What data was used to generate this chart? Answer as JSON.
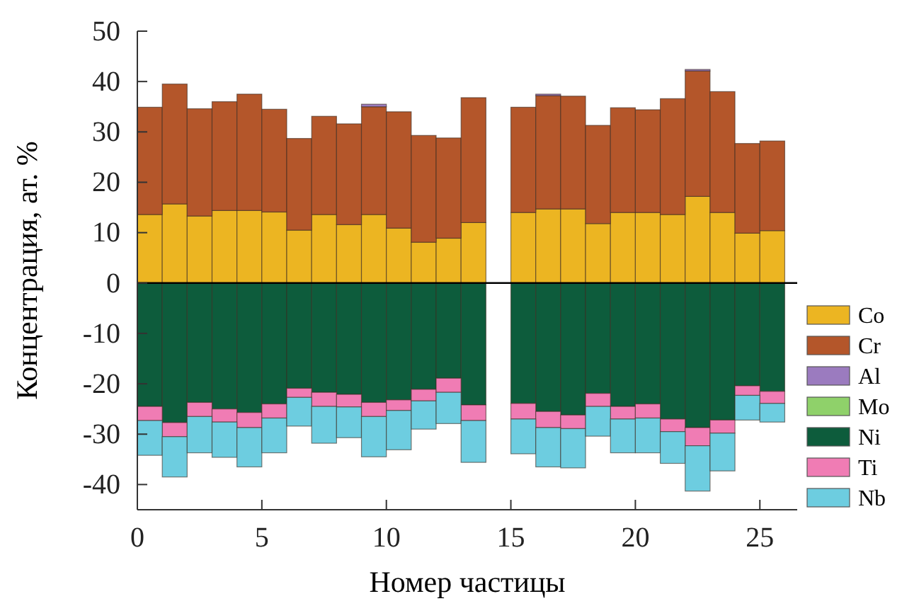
{
  "chart_data": {
    "type": "bar",
    "stacked": true,
    "xlabel": "Номер частицы",
    "ylabel": "Концентрация, ат. %",
    "x": [
      0.5,
      1.5,
      2.5,
      3.5,
      4.5,
      5.5,
      6.5,
      7.5,
      8.5,
      9.5,
      10.5,
      11.5,
      12.5,
      13.5,
      15.5,
      16.5,
      17.5,
      18.5,
      19.5,
      20.5,
      21.5,
      22.5,
      23.5,
      24.5,
      25.5
    ],
    "xlim": [
      0,
      26.5
    ],
    "xticks": [
      0,
      5,
      10,
      15,
      20,
      25
    ],
    "ylim": [
      -45,
      50
    ],
    "yticks": [
      -40,
      -30,
      -20,
      -10,
      0,
      10,
      20,
      30,
      40,
      50
    ],
    "grid": false,
    "legend": "right",
    "ref_lines": [
      {
        "axis": "y",
        "value": 0,
        "color": "#000000"
      }
    ],
    "series": [
      {
        "name": "Co",
        "color": "#ecb522",
        "values": [
          13.6,
          15.7,
          13.3,
          14.4,
          14.4,
          14.1,
          10.5,
          13.6,
          11.6,
          13.6,
          10.9,
          8.1,
          8.9,
          12.0,
          14.0,
          14.7,
          14.7,
          11.8,
          14.0,
          14.0,
          13.6,
          17.2,
          14.0,
          9.9,
          10.4
        ]
      },
      {
        "name": "Cr",
        "color": "#b4562a",
        "values": [
          21.3,
          23.8,
          21.3,
          21.6,
          23.1,
          20.4,
          18.2,
          19.5,
          20.0,
          21.4,
          23.1,
          21.2,
          19.9,
          24.8,
          20.9,
          22.5,
          22.4,
          19.5,
          20.8,
          20.4,
          23.0,
          24.9,
          24.0,
          17.8,
          17.8
        ]
      },
      {
        "name": "Al",
        "color": "#9b7bbf",
        "values": [
          0,
          0,
          0,
          0,
          0,
          0,
          0,
          0,
          0,
          0.5,
          0,
          0,
          0,
          0,
          0,
          0.3,
          0,
          0,
          0,
          0,
          0,
          0.3,
          0,
          0,
          0
        ]
      },
      {
        "name": "Mo",
        "color": "#8fd16a",
        "values": [
          0,
          0,
          0,
          0,
          0,
          0,
          0,
          0,
          0,
          0,
          0,
          0,
          0,
          0,
          0,
          0,
          0,
          0,
          0,
          0,
          0,
          0,
          0,
          0,
          0
        ]
      },
      {
        "name": "Ni",
        "color": "#0d5c3c",
        "values": [
          -24.5,
          -27.7,
          -23.7,
          -25.0,
          -25.7,
          -24.0,
          -20.9,
          -21.7,
          -22.1,
          -23.7,
          -23.2,
          -21.1,
          -18.9,
          -24.2,
          -23.9,
          -25.5,
          -26.2,
          -21.9,
          -24.5,
          -24.0,
          -27.0,
          -28.7,
          -27.2,
          -20.4,
          -21.5
        ]
      },
      {
        "name": "Ti",
        "color": "#f07cb4",
        "values": [
          -2.8,
          -2.8,
          -2.8,
          -2.6,
          -3.0,
          -2.8,
          -1.8,
          -2.8,
          -2.5,
          -2.8,
          -2.1,
          -2.3,
          -2.8,
          -3.1,
          -3.1,
          -3.2,
          -2.7,
          -2.6,
          -2.5,
          -2.8,
          -2.5,
          -3.6,
          -2.6,
          -1.9,
          -2.4
        ]
      },
      {
        "name": "Nb",
        "color": "#6dcde0",
        "values": [
          -6.9,
          -8.0,
          -7.2,
          -7.0,
          -7.8,
          -6.9,
          -5.7,
          -7.3,
          -6.1,
          -8.0,
          -7.8,
          -5.6,
          -6.2,
          -8.3,
          -6.9,
          -7.8,
          -7.8,
          -5.9,
          -6.7,
          -6.9,
          -6.3,
          -9.0,
          -7.5,
          -4.9,
          -3.7
        ]
      }
    ]
  }
}
